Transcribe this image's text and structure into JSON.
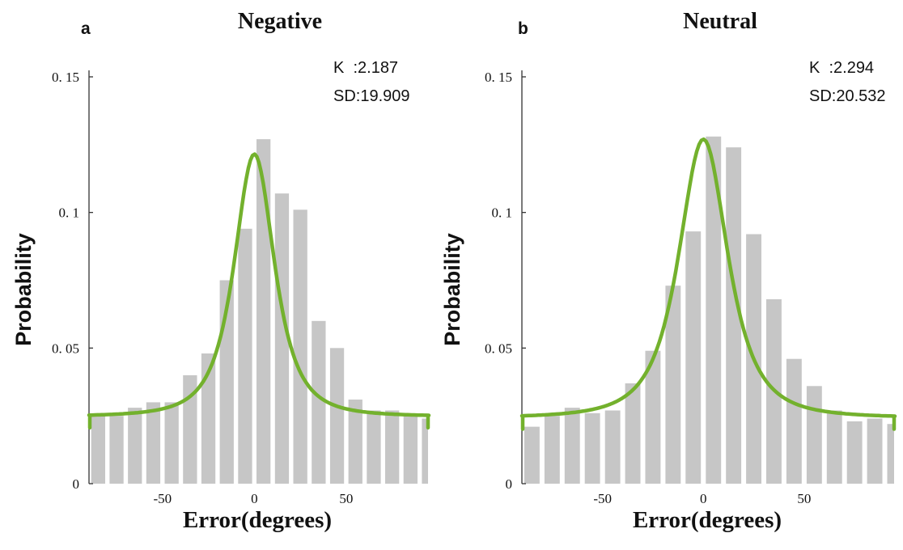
{
  "chart_data": [
    {
      "type": "bar",
      "panel": "a",
      "title": "Negative",
      "xlabel": "Error(degrees)",
      "ylabel": "Probability",
      "xlim": [
        -90,
        95
      ],
      "ylim": [
        0,
        0.15
      ],
      "xticks": [
        -50,
        0,
        50
      ],
      "xtick_labels": [
        "-50",
        "0",
        "50"
      ],
      "yticks": [
        0,
        0.05,
        0.1,
        0.15
      ],
      "ytick_labels": [
        "0",
        "0. 05",
        "0. 1",
        "0. 15"
      ],
      "annotations": [
        "K  :2.187",
        "SD:19.909"
      ],
      "bin_centers": [
        -85,
        -75,
        -65,
        -55,
        -45,
        -35,
        -25,
        -15,
        -5,
        5,
        15,
        25,
        35,
        45,
        55,
        65,
        75,
        85,
        95
      ],
      "values": [
        0.025,
        0.025,
        0.028,
        0.03,
        0.03,
        0.04,
        0.048,
        0.075,
        0.094,
        0.127,
        0.107,
        0.101,
        0.06,
        0.05,
        0.031,
        0.027,
        0.027,
        0.025,
        0.024
      ],
      "fit": {
        "label": "fit curve",
        "baseline": 0.0248,
        "peak": 0.1215,
        "center": 0,
        "width": 17.5
      }
    },
    {
      "type": "bar",
      "panel": "b",
      "title": "Neutral",
      "xlabel": "Error(degrees)",
      "ylabel": "Probability",
      "xlim": [
        -90,
        95
      ],
      "ylim": [
        0,
        0.15
      ],
      "xticks": [
        -50,
        0,
        50
      ],
      "xtick_labels": [
        "-50",
        "0",
        "50"
      ],
      "yticks": [
        0,
        0.05,
        0.1,
        0.15
      ],
      "ytick_labels": [
        "0",
        "0. 05",
        "0. 1",
        "0. 15"
      ],
      "annotations": [
        "K  :2.294",
        "SD:20.532"
      ],
      "bin_centers": [
        -85,
        -75,
        -65,
        -55,
        -45,
        -35,
        -25,
        -15,
        -5,
        5,
        15,
        25,
        35,
        45,
        55,
        65,
        75,
        85,
        95
      ],
      "values": [
        0.021,
        0.025,
        0.028,
        0.026,
        0.027,
        0.037,
        0.049,
        0.073,
        0.093,
        0.128,
        0.124,
        0.092,
        0.068,
        0.046,
        0.036,
        0.027,
        0.023,
        0.024,
        0.022
      ],
      "fit": {
        "label": "fit curve",
        "baseline": 0.0243,
        "peak": 0.127,
        "center": 0,
        "width": 19.5
      }
    }
  ]
}
